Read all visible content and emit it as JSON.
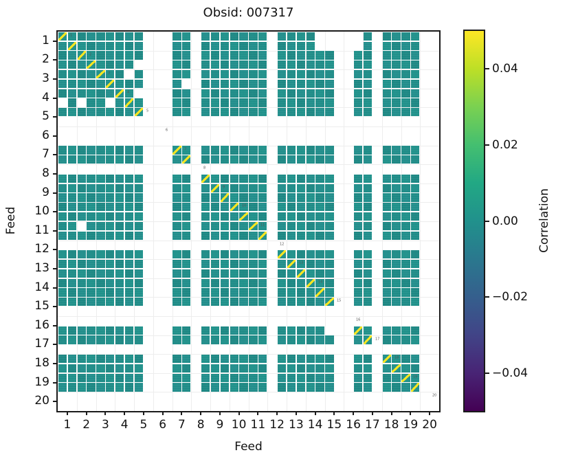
{
  "title": "Obsid: 007317",
  "axes": {
    "xlabel": "Feed",
    "ylabel": "Feed",
    "xtick_labels": [
      "1",
      "2",
      "3",
      "4",
      "5",
      "6",
      "7",
      "8",
      "9",
      "10",
      "11",
      "12",
      "13",
      "14",
      "15",
      "16",
      "17",
      "18",
      "19",
      "20"
    ],
    "ytick_labels": [
      "1",
      "2",
      "3",
      "4",
      "5",
      "6",
      "7",
      "8",
      "9",
      "10",
      "11",
      "12",
      "13",
      "14",
      "15",
      "16",
      "17",
      "18",
      "19",
      "20"
    ]
  },
  "colorbar": {
    "label": "Correlation",
    "tick_labels": [
      "0.04",
      "0.02",
      "0.00",
      "−0.02",
      "−0.04"
    ],
    "tick_values": [
      0.04,
      0.02,
      0.0,
      -0.02,
      -0.04
    ],
    "vmin": -0.05,
    "vmax": 0.05,
    "colormap": "viridis",
    "gradient": [
      "#fde725",
      "#bddf26",
      "#7ad151",
      "#44bf70",
      "#22a884",
      "#21918c",
      "#2a788e",
      "#355f8d",
      "#414487",
      "#482475",
      "#440154"
    ]
  },
  "chart_data": {
    "type": "heatmap",
    "title": "Obsid: 007317",
    "xlabel": "Feed",
    "ylabel": "Feed",
    "feeds": [
      1,
      2,
      3,
      4,
      5,
      6,
      7,
      8,
      9,
      10,
      11,
      12,
      13,
      14,
      15,
      16,
      17,
      18,
      19,
      20
    ],
    "bands_per_feed": 2,
    "n_bands": 40,
    "band_present": [
      1,
      1,
      1,
      1,
      1,
      1,
      1,
      1,
      1,
      0,
      0,
      0,
      1,
      1,
      0,
      1,
      1,
      1,
      1,
      1,
      1,
      1,
      0,
      1,
      1,
      1,
      1,
      1,
      1,
      0,
      0,
      1,
      1,
      0,
      1,
      1,
      1,
      1,
      0,
      0
    ],
    "missing_bands_by_feed": {
      "5": [
        2
      ],
      "6": [
        1,
        2
      ],
      "8": [
        1
      ],
      "12": [
        1
      ],
      "15": [
        2
      ],
      "16": [
        1
      ],
      "17": [
        2
      ],
      "20": [
        1,
        2
      ]
    },
    "holes": [
      [
        8,
        1
      ],
      [
        8,
        3
      ],
      [
        8,
        6
      ],
      [
        4,
        9
      ],
      [
        5,
        8
      ],
      [
        7,
        9
      ],
      [
        21,
        3
      ],
      [
        6,
        14
      ],
      [
        1,
        28
      ],
      [
        1,
        29
      ],
      [
        2,
        28
      ],
      [
        2,
        29
      ],
      [
        1,
        32
      ],
      [
        2,
        32
      ],
      [
        32,
        29
      ],
      [
        34,
        29
      ]
    ],
    "offdiagonal_value": 0.0,
    "diagonal_value": 1.0,
    "vmin": -0.05,
    "vmax": 0.05,
    "legend_position": "right-colorbar",
    "grid": "faint feed-boundary gridlines",
    "cell_color": "#21918c",
    "cell_color_variants": [
      "#21918c",
      "#22968f",
      "#1f8c88",
      "#249390"
    ],
    "diag_color": "#f8e621",
    "feed_annotations": [
      "1",
      "2",
      "3",
      "4",
      "5",
      "6",
      "7",
      "8",
      "9",
      "10",
      "11",
      "12",
      "13",
      "14",
      "15",
      "16",
      "17",
      "18",
      "19",
      "20"
    ],
    "annotation_color": "#555555"
  }
}
